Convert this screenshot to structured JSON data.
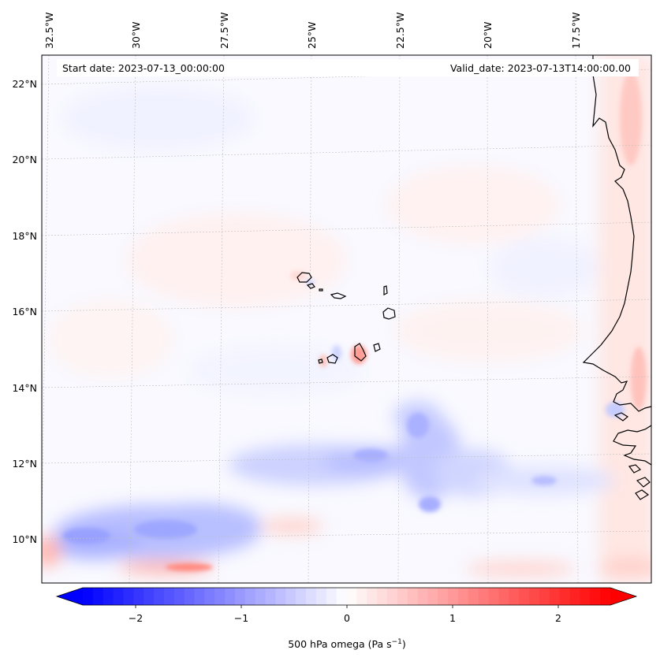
{
  "header": {
    "start_date": "Start date: 2023-07-13_00:00:00",
    "valid_date": "Valid_date: 2023-07-13T14:00:00.00"
  },
  "map": {
    "lon_labels": [
      "32.5°W",
      "30°W",
      "27.5°W",
      "25°W",
      "22.5°W",
      "20°W",
      "17.5°W"
    ],
    "lat_labels": [
      "22°N",
      "20°N",
      "18°N",
      "16°N",
      "14°N",
      "12°N",
      "10°N"
    ],
    "gridlines": "dashed",
    "coastline_color": "#000000",
    "features": [
      "Cape Verde islands",
      "West African coastline"
    ]
  },
  "colorbar": {
    "ticks": [
      "−2",
      "−1",
      "0",
      "1",
      "2"
    ],
    "label_main": "500 hPa omega (Pa s",
    "label_sup": "−1",
    "label_close": ")",
    "colormap": "bwr",
    "range": [
      -2.6,
      2.6
    ],
    "extend": "both",
    "color_min": "#0000ff",
    "color_mid": "#ffffff",
    "color_max": "#ff0000"
  }
}
